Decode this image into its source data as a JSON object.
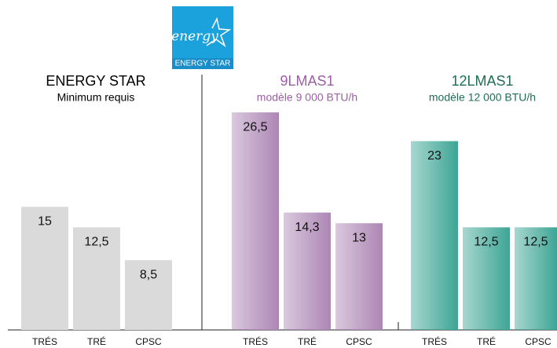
{
  "chart_data": {
    "type": "bar",
    "logo": {
      "script": "energy",
      "label": "ENERGY STAR"
    },
    "categories": [
      "TRÉS",
      "TRÉ",
      "CPSC"
    ],
    "series": [
      {
        "name": "ENERGY STAR",
        "subtitle": "Minimum requis",
        "color": "#d9dad9",
        "title_color": "#000000",
        "gradient": false,
        "values": [
          15,
          12.5,
          8.5
        ],
        "value_labels": [
          "15",
          "12,5",
          "8,5"
        ]
      },
      {
        "name": "9LMAS1",
        "subtitle": "modèle 9 000 BTU/h",
        "color": "#ad86b5",
        "title_color": "#9b5fa3",
        "gradient": true,
        "values": [
          26.5,
          14.3,
          13
        ],
        "value_labels": [
          "26,5",
          "14,3",
          "13"
        ]
      },
      {
        "name": "12LMAS1",
        "subtitle": "modèle 12 000 BTU/h",
        "color": "#3da595",
        "title_color": "#1e6e55",
        "gradient": true,
        "values": [
          23,
          12.5,
          12.5
        ],
        "value_labels": [
          "23",
          "12,5",
          "12,5"
        ]
      }
    ]
  }
}
